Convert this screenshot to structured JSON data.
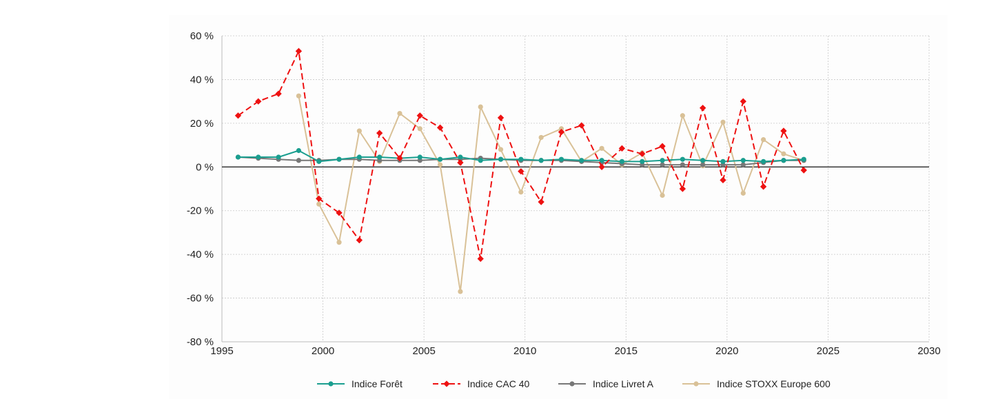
{
  "chart_data": {
    "type": "line",
    "title": "",
    "xlabel": "",
    "ylabel": "",
    "xlim": [
      1995,
      2030
    ],
    "ylim": [
      -80,
      60
    ],
    "xticks": [
      1995,
      2000,
      2005,
      2010,
      2015,
      2020,
      2025,
      2030
    ],
    "yticks": [
      60,
      40,
      20,
      0,
      -20,
      -40,
      -60,
      -80
    ],
    "ytick_labels": [
      "60 %",
      "40 %",
      "20 %",
      "0 %",
      "-20 %",
      "-40 %",
      "-60 %",
      "-80 %"
    ],
    "grid": true,
    "legend_position": "bottom",
    "series": [
      {
        "name": "Indice Forêt",
        "color": "#1a9e8f",
        "dash": "solid",
        "marker": "circle",
        "x": [
          1995.8,
          1996.8,
          1997.8,
          1998.8,
          1999.8,
          2000.8,
          2001.8,
          2002.8,
          2003.8,
          2004.8,
          2005.8,
          2006.8,
          2007.8,
          2008.8,
          2009.8,
          2010.8,
          2011.8,
          2012.8,
          2013.8,
          2014.8,
          2015.8,
          2016.8,
          2017.8,
          2018.8,
          2019.8,
          2020.8,
          2021.8,
          2022.8,
          2023.8
        ],
        "y": [
          4.5,
          4.5,
          4.5,
          7.5,
          2.5,
          3.5,
          4.5,
          4.5,
          4.0,
          4.5,
          3.5,
          4.5,
          3.0,
          3.5,
          3.5,
          3.0,
          3.5,
          3.0,
          3.0,
          2.5,
          2.5,
          3.0,
          3.5,
          3.0,
          2.5,
          3.0,
          2.5,
          3.0,
          3.5
        ]
      },
      {
        "name": "Indice CAC 40",
        "color": "#ee1111",
        "dash": "dashed",
        "marker": "diamond",
        "x": [
          1995.8,
          1996.8,
          1997.8,
          1998.8,
          1999.8,
          2000.8,
          2001.8,
          2002.8,
          2003.8,
          2004.8,
          2005.8,
          2006.8,
          2007.8,
          2008.8,
          2009.8,
          2010.8,
          2011.8,
          2012.8,
          2013.8,
          2014.8,
          2015.8,
          2016.8,
          2017.8,
          2018.8,
          2019.8,
          2020.8,
          2021.8,
          2022.8,
          2023.8
        ],
        "y": [
          23.5,
          30.0,
          33.5,
          53.0,
          -14.5,
          -21.0,
          -33.5,
          15.5,
          4.0,
          23.5,
          18.0,
          2.0,
          -42.0,
          22.5,
          -2.0,
          -16.0,
          16.0,
          19.0,
          0.0,
          8.5,
          6.0,
          9.5,
          -10.0,
          27.0,
          -6.0,
          30.0,
          -9.0,
          16.5,
          -1.5
        ]
      },
      {
        "name": "Indice Livret A",
        "color": "#777777",
        "dash": "solid",
        "marker": "circle",
        "x": [
          1995.8,
          1996.8,
          1997.8,
          1998.8,
          1999.8,
          2000.8,
          2001.8,
          2002.8,
          2003.8,
          2004.8,
          2005.8,
          2006.8,
          2007.8,
          2008.8,
          2009.8,
          2010.8,
          2011.8,
          2012.8,
          2013.8,
          2014.8,
          2015.8,
          2016.8,
          2017.8,
          2018.8,
          2019.8,
          2020.8,
          2021.8,
          2022.8,
          2023.8
        ],
        "y": [
          4.5,
          4.0,
          3.5,
          3.0,
          3.0,
          3.5,
          3.5,
          3.0,
          3.0,
          3.0,
          3.5,
          3.5,
          4.0,
          3.5,
          3.0,
          3.0,
          3.0,
          2.5,
          2.0,
          1.5,
          1.0,
          1.0,
          1.0,
          1.0,
          1.0,
          1.0,
          2.0,
          3.0,
          3.0
        ]
      },
      {
        "name": "Indice STOXX Europe 600",
        "color": "#d9c197",
        "dash": "solid",
        "marker": "circle",
        "x": [
          1998.8,
          1999.8,
          2000.8,
          2001.8,
          2002.8,
          2003.8,
          2004.8,
          2005.8,
          2006.8,
          2007.8,
          2008.8,
          2009.8,
          2010.8,
          2011.8,
          2012.8,
          2013.8,
          2014.8,
          2015.8,
          2016.8,
          2017.8,
          2018.8,
          2019.8,
          2020.8,
          2021.8,
          2022.8,
          2023.8
        ],
        "y": [
          32.5,
          -17.0,
          -34.5,
          16.5,
          2.5,
          24.5,
          17.5,
          1.0,
          -57.0,
          27.5,
          8.0,
          -11.5,
          13.5,
          17.5,
          2.5,
          8.5,
          1.0,
          6.5,
          -13.0,
          23.5,
          0.5,
          20.5,
          -12.0,
          12.5,
          6.0,
          3.0
        ]
      }
    ]
  }
}
